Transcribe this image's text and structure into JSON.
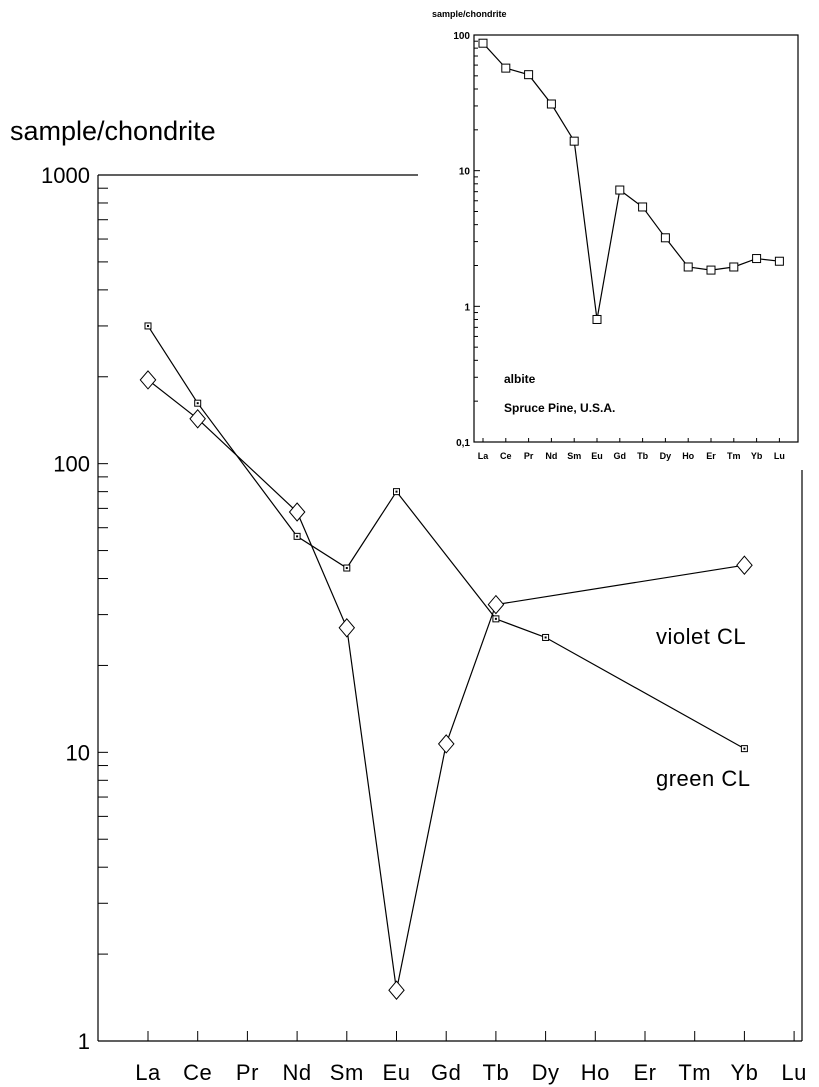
{
  "chart_data": [
    {
      "type": "line",
      "ylabel": "sample/chondrite",
      "yscale": "log",
      "ylim": [
        1,
        1000
      ],
      "yticks": [
        "1",
        "10",
        "100",
        "1000"
      ],
      "categories": [
        "La",
        "Ce",
        "Pr",
        "Nd",
        "Sm",
        "Eu",
        "Gd",
        "Tb",
        "Dy",
        "Ho",
        "Er",
        "Tm",
        "Yb",
        "Lu"
      ],
      "series": [
        {
          "name": "violet CL",
          "marker": "diamond",
          "points": [
            {
              "x": "La",
              "y": 195
            },
            {
              "x": "Ce",
              "y": 143
            },
            {
              "x": "Nd",
              "y": 68
            },
            {
              "x": "Sm",
              "y": 27
            },
            {
              "x": "Eu",
              "y": 1.5
            },
            {
              "x": "Gd",
              "y": 10.7
            },
            {
              "x": "Tb",
              "y": 32.5
            },
            {
              "x": "Yb",
              "y": 44.5
            }
          ]
        },
        {
          "name": "green CL",
          "marker": "square",
          "points": [
            {
              "x": "La",
              "y": 300
            },
            {
              "x": "Ce",
              "y": 162
            },
            {
              "x": "Nd",
              "y": 56
            },
            {
              "x": "Sm",
              "y": 43.5
            },
            {
              "x": "Eu",
              "y": 80
            },
            {
              "x": "Tb",
              "y": 29
            },
            {
              "x": "Dy",
              "y": 25
            },
            {
              "x": "Yb",
              "y": 10.3
            }
          ]
        }
      ],
      "grid": false
    },
    {
      "type": "line",
      "ylabel": "sample/chondrite",
      "yscale": "log",
      "ylim": [
        0.1,
        100
      ],
      "yticks": [
        "0,1",
        "1",
        "10",
        "100"
      ],
      "categories": [
        "La",
        "Ce",
        "Pr",
        "Nd",
        "Sm",
        "Eu",
        "Gd",
        "Tb",
        "Dy",
        "Ho",
        "Er",
        "Tm",
        "Yb",
        "Lu"
      ],
      "annotations": [
        "albite",
        "Spruce Pine, U.S.A."
      ],
      "series": [
        {
          "marker": "square",
          "points": [
            {
              "x": "La",
              "y": 87
            },
            {
              "x": "Ce",
              "y": 57
            },
            {
              "x": "Pr",
              "y": 51
            },
            {
              "x": "Nd",
              "y": 31
            },
            {
              "x": "Sm",
              "y": 16.5
            },
            {
              "x": "Eu",
              "y": 0.8
            },
            {
              "x": "Gd",
              "y": 7.2
            },
            {
              "x": "Tb",
              "y": 5.4
            },
            {
              "x": "Dy",
              "y": 3.2
            },
            {
              "x": "Ho",
              "y": 1.95
            },
            {
              "x": "Er",
              "y": 1.85
            },
            {
              "x": "Tm",
              "y": 1.95
            },
            {
              "x": "Yb",
              "y": 2.25
            },
            {
              "x": "Lu",
              "y": 2.15
            }
          ]
        }
      ],
      "grid": false
    }
  ]
}
